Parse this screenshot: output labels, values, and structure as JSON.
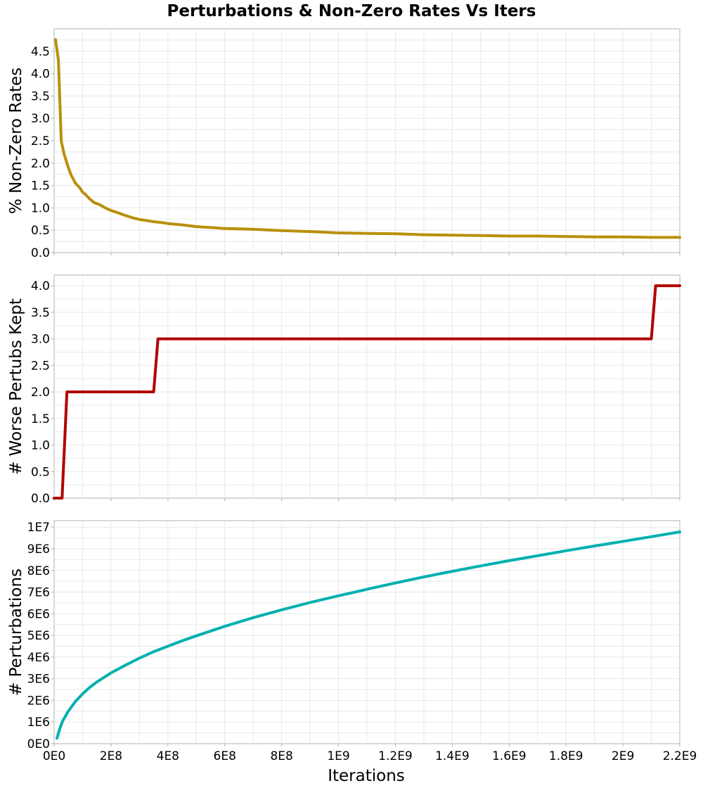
{
  "chart_data": {
    "title": "Perturbations & Non-Zero Rates Vs Iters",
    "type": "line",
    "xlabel": "Iterations",
    "xlim": [
      0,
      2200000000
    ],
    "x_ticks": [
      0,
      200000000,
      400000000,
      600000000,
      800000000,
      1000000000,
      1200000000,
      1400000000,
      1600000000,
      1800000000,
      2000000000,
      2200000000
    ],
    "x_tick_labels": [
      "0E0",
      "2E8",
      "4E8",
      "6E8",
      "8E8",
      "1E9",
      "1.2E9",
      "1.4E9",
      "1.6E9",
      "1.8E9",
      "2E9",
      "2.2E9"
    ],
    "grid": true,
    "legend": "none",
    "panels": [
      {
        "ylabel": "% Non-Zero Rates",
        "ylim": [
          0,
          5.0
        ],
        "y_ticks": [
          0,
          0.5,
          1.0,
          1.5,
          2.0,
          2.5,
          3.0,
          3.5,
          4.0,
          4.5
        ],
        "y_tick_labels": [
          "0.0",
          "0.5",
          "1.0",
          "1.5",
          "2.0",
          "2.5",
          "3.0",
          "3.5",
          "4.0",
          "4.5"
        ],
        "color": "#b8900a",
        "step": false,
        "x": [
          5000000,
          15000000,
          25000000,
          35000000,
          50000000,
          60000000,
          75000000,
          90000000,
          100000000,
          110000000,
          125000000,
          140000000,
          160000000,
          180000000,
          200000000,
          220000000,
          250000000,
          280000000,
          300000000,
          320000000,
          350000000,
          380000000,
          400000000,
          450000000,
          500000000,
          550000000,
          600000000,
          650000000,
          700000000,
          800000000,
          900000000,
          1000000000,
          1100000000,
          1200000000,
          1300000000,
          1400000000,
          1500000000,
          1600000000,
          1700000000,
          1800000000,
          1900000000,
          2000000000,
          2100000000,
          2200000000
        ],
        "y": [
          4.76,
          4.3,
          2.5,
          2.2,
          1.9,
          1.73,
          1.55,
          1.45,
          1.35,
          1.3,
          1.2,
          1.12,
          1.07,
          1.0,
          0.94,
          0.9,
          0.83,
          0.77,
          0.74,
          0.72,
          0.69,
          0.67,
          0.65,
          0.62,
          0.58,
          0.56,
          0.54,
          0.53,
          0.52,
          0.49,
          0.47,
          0.44,
          0.43,
          0.42,
          0.4,
          0.39,
          0.38,
          0.37,
          0.37,
          0.36,
          0.35,
          0.35,
          0.34,
          0.34
        ]
      },
      {
        "ylabel": "# Worse Pertubs Kept",
        "ylim": [
          0,
          4.2
        ],
        "y_ticks": [
          0,
          0.5,
          1.0,
          1.5,
          2.0,
          2.5,
          3.0,
          3.5,
          4.0
        ],
        "y_tick_labels": [
          "0.0",
          "0.5",
          "1.0",
          "1.5",
          "2.0",
          "2.5",
          "3.0",
          "3.5",
          "4.0"
        ],
        "color": "#b00000",
        "step": false,
        "x": [
          0,
          28000000,
          45000000,
          350000000,
          365000000,
          2100000000,
          2115000000,
          2200000000
        ],
        "y": [
          0,
          0,
          2,
          2,
          3,
          3,
          4,
          4
        ]
      },
      {
        "ylabel": "# Perturbations",
        "ylim": [
          0,
          10300000
        ],
        "y_ticks": [
          0,
          1000000,
          2000000,
          3000000,
          4000000,
          5000000,
          6000000,
          7000000,
          8000000,
          9000000,
          10000000
        ],
        "y_tick_labels": [
          "0E0",
          "1E6",
          "2E6",
          "3E6",
          "4E6",
          "5E6",
          "6E6",
          "7E6",
          "8E6",
          "9E6",
          "1E7"
        ],
        "color": "#00b0b0",
        "step": false,
        "x": [
          10000000,
          20000000,
          30000000,
          50000000,
          75000000,
          100000000,
          125000000,
          150000000,
          200000000,
          250000000,
          300000000,
          350000000,
          400000000,
          450000000,
          500000000,
          600000000,
          700000000,
          800000000,
          900000000,
          1000000000,
          1100000000,
          1200000000,
          1300000000,
          1400000000,
          1500000000,
          1600000000,
          1700000000,
          1800000000,
          1900000000,
          2000000000,
          2100000000,
          2200000000
        ],
        "y": [
          250000,
          700000,
          1050000,
          1500000,
          1950000,
          2300000,
          2600000,
          2850000,
          3270000,
          3620000,
          3950000,
          4250000,
          4500000,
          4750000,
          4980000,
          5420000,
          5820000,
          6180000,
          6520000,
          6830000,
          7130000,
          7420000,
          7700000,
          7960000,
          8210000,
          8450000,
          8680000,
          8910000,
          9130000,
          9340000,
          9560000,
          9780000
        ]
      }
    ]
  }
}
